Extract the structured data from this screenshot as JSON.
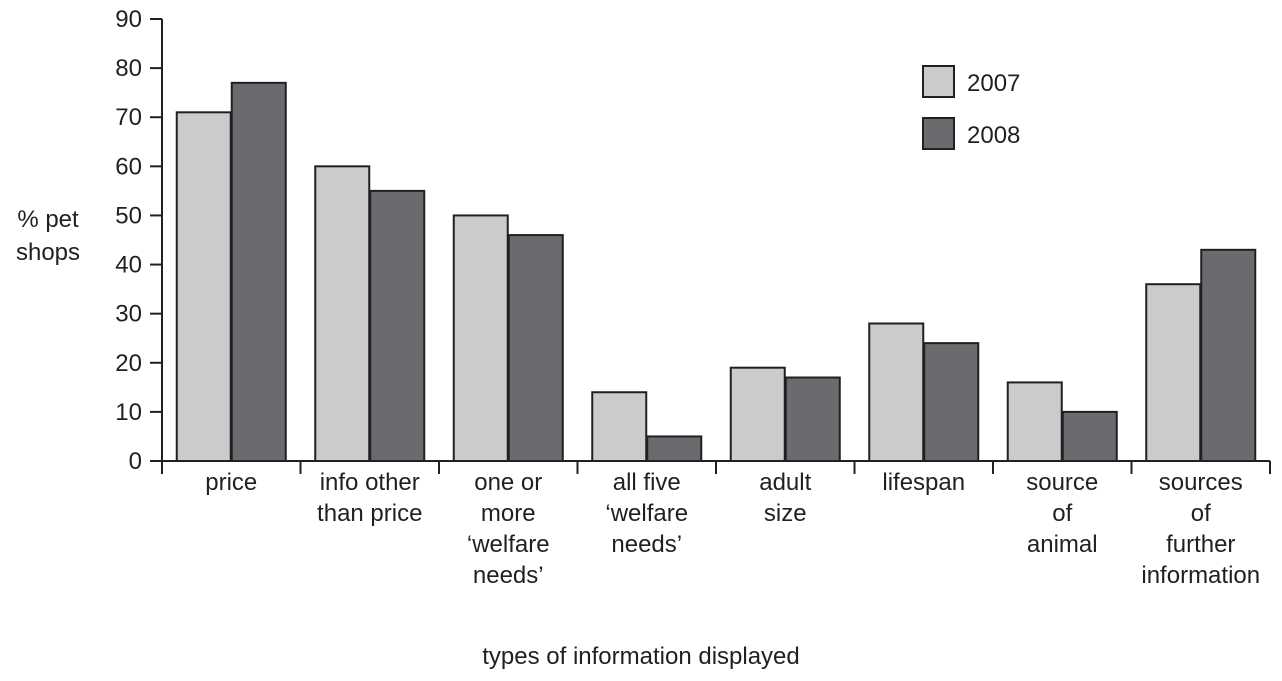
{
  "chart_data": {
    "type": "bar",
    "ylabel": [
      "% pet",
      "shops"
    ],
    "xlabel": "types of information displayed",
    "ylim": [
      0,
      90
    ],
    "yticks": [
      0,
      10,
      20,
      30,
      40,
      50,
      60,
      70,
      80,
      90
    ],
    "grid": false,
    "legend_position": "top-right",
    "categories": [
      [
        "price"
      ],
      [
        "info other",
        "than price"
      ],
      [
        "one or",
        "more",
        "‘welfare",
        "needs’"
      ],
      [
        "all five",
        "‘welfare",
        "needs’"
      ],
      [
        "adult",
        "size"
      ],
      [
        "lifespan"
      ],
      [
        "source",
        "of",
        "animal"
      ],
      [
        "sources",
        "of",
        "further",
        "information"
      ]
    ],
    "series": [
      {
        "name": "2007",
        "color": "#cacbcd",
        "values": [
          71,
          60,
          50,
          14,
          19,
          28,
          16,
          36
        ]
      },
      {
        "name": "2008",
        "color": "#6a6b6f",
        "values": [
          77,
          55,
          46,
          5,
          17,
          24,
          10,
          43
        ]
      }
    ]
  }
}
